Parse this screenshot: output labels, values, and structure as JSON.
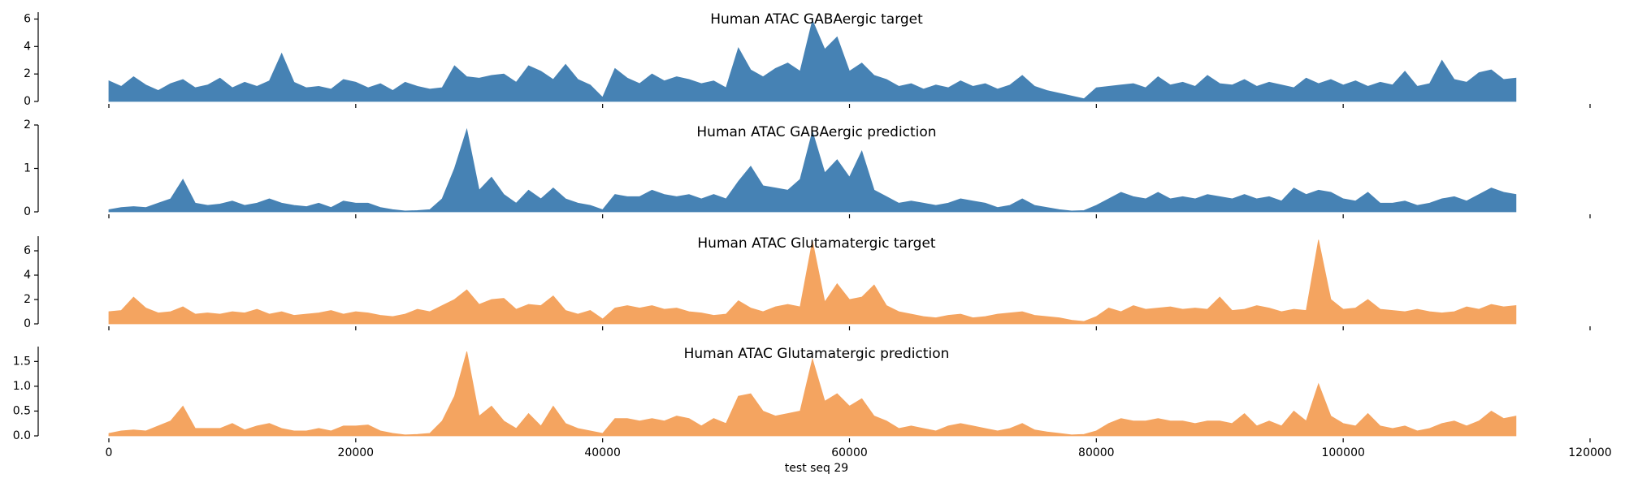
{
  "chart_data": [
    {
      "type": "area",
      "title": "Human ATAC GABAergic target",
      "color": "#4682b4",
      "x": [
        0,
        1000,
        2000,
        3000,
        4000,
        5000,
        6000,
        7000,
        8000,
        9000,
        10000,
        11000,
        12000,
        13000,
        14000,
        15000,
        16000,
        17000,
        18000,
        19000,
        20000,
        21000,
        22000,
        23000,
        24000,
        25000,
        26000,
        27000,
        28000,
        29000,
        30000,
        31000,
        32000,
        33000,
        34000,
        35000,
        36000,
        37000,
        38000,
        39000,
        40000,
        41000,
        42000,
        43000,
        44000,
        45000,
        46000,
        47000,
        48000,
        49000,
        50000,
        51000,
        52000,
        53000,
        54000,
        55000,
        56000,
        57000,
        58000,
        59000,
        60000,
        61000,
        62000,
        63000,
        64000,
        65000,
        66000,
        67000,
        68000,
        69000,
        70000,
        71000,
        72000,
        73000,
        74000,
        75000,
        76000,
        77000,
        78000,
        79000,
        80000,
        81000,
        82000,
        83000,
        84000,
        85000,
        86000,
        87000,
        88000,
        89000,
        90000,
        91000,
        92000,
        93000,
        94000,
        95000,
        96000,
        97000,
        98000,
        99000,
        100000,
        101000,
        102000,
        103000,
        104000,
        105000,
        106000,
        107000,
        108000,
        109000,
        110000,
        111000,
        112000,
        113000,
        114000
      ],
      "values": [
        1.5,
        1.1,
        1.8,
        1.2,
        0.8,
        1.3,
        1.6,
        1.0,
        1.2,
        1.7,
        1.0,
        1.4,
        1.1,
        1.5,
        3.5,
        1.4,
        1.0,
        1.1,
        0.9,
        1.6,
        1.4,
        1.0,
        1.3,
        0.8,
        1.4,
        1.1,
        0.9,
        1.0,
        2.6,
        1.8,
        1.7,
        1.9,
        2.0,
        1.4,
        2.6,
        2.2,
        1.6,
        2.7,
        1.6,
        1.2,
        0.3,
        2.4,
        1.7,
        1.3,
        2.0,
        1.5,
        1.8,
        1.6,
        1.3,
        1.5,
        1.0,
        3.9,
        2.3,
        1.8,
        2.4,
        2.8,
        2.2,
        5.9,
        3.8,
        4.7,
        2.2,
        2.8,
        1.9,
        1.6,
        1.1,
        1.3,
        0.9,
        1.2,
        1.0,
        1.5,
        1.1,
        1.3,
        0.9,
        1.2,
        1.9,
        1.1,
        0.8,
        0.6,
        0.4,
        0.2,
        1.0,
        1.1,
        1.2,
        1.3,
        1.0,
        1.8,
        1.2,
        1.4,
        1.1,
        1.9,
        1.3,
        1.2,
        1.6,
        1.1,
        1.4,
        1.2,
        1.0,
        1.7,
        1.3,
        1.6,
        1.2,
        1.5,
        1.1,
        1.4,
        1.2,
        2.2,
        1.1,
        1.3,
        3.0,
        1.6,
        1.4,
        2.1,
        2.3,
        1.6,
        1.7
      ],
      "xlim": [
        0,
        120000
      ],
      "xticks": [
        0,
        20000,
        40000,
        60000,
        80000,
        100000,
        120000
      ],
      "ylim": [
        0,
        6.5
      ],
      "yticks": [
        0,
        2,
        4,
        6
      ]
    },
    {
      "type": "area",
      "title": "Human ATAC GABAergic prediction",
      "color": "#4682b4",
      "x": [
        0,
        1000,
        2000,
        3000,
        4000,
        5000,
        6000,
        7000,
        8000,
        9000,
        10000,
        11000,
        12000,
        13000,
        14000,
        15000,
        16000,
        17000,
        18000,
        19000,
        20000,
        21000,
        22000,
        23000,
        24000,
        25000,
        26000,
        27000,
        28000,
        29000,
        30000,
        31000,
        32000,
        33000,
        34000,
        35000,
        36000,
        37000,
        38000,
        39000,
        40000,
        41000,
        42000,
        43000,
        44000,
        45000,
        46000,
        47000,
        48000,
        49000,
        50000,
        51000,
        52000,
        53000,
        54000,
        55000,
        56000,
        57000,
        58000,
        59000,
        60000,
        61000,
        62000,
        63000,
        64000,
        65000,
        66000,
        67000,
        68000,
        69000,
        70000,
        71000,
        72000,
        73000,
        74000,
        75000,
        76000,
        77000,
        78000,
        79000,
        80000,
        81000,
        82000,
        83000,
        84000,
        85000,
        86000,
        87000,
        88000,
        89000,
        90000,
        91000,
        92000,
        93000,
        94000,
        95000,
        96000,
        97000,
        98000,
        99000,
        100000,
        101000,
        102000,
        103000,
        104000,
        105000,
        106000,
        107000,
        108000,
        109000,
        110000,
        111000,
        112000,
        113000,
        114000
      ],
      "values": [
        0.05,
        0.1,
        0.12,
        0.1,
        0.2,
        0.3,
        0.75,
        0.2,
        0.15,
        0.18,
        0.25,
        0.15,
        0.2,
        0.3,
        0.2,
        0.15,
        0.12,
        0.2,
        0.1,
        0.25,
        0.2,
        0.2,
        0.1,
        0.05,
        0.02,
        0.03,
        0.05,
        0.3,
        1.0,
        1.9,
        0.5,
        0.8,
        0.4,
        0.2,
        0.5,
        0.3,
        0.55,
        0.3,
        0.2,
        0.15,
        0.05,
        0.4,
        0.35,
        0.35,
        0.5,
        0.4,
        0.35,
        0.4,
        0.3,
        0.4,
        0.3,
        0.7,
        1.05,
        0.6,
        0.55,
        0.5,
        0.75,
        1.85,
        0.9,
        1.2,
        0.8,
        1.4,
        0.5,
        0.35,
        0.2,
        0.25,
        0.2,
        0.15,
        0.2,
        0.3,
        0.25,
        0.2,
        0.1,
        0.15,
        0.3,
        0.15,
        0.1,
        0.05,
        0.02,
        0.03,
        0.15,
        0.3,
        0.45,
        0.35,
        0.3,
        0.45,
        0.3,
        0.35,
        0.3,
        0.4,
        0.35,
        0.3,
        0.4,
        0.3,
        0.35,
        0.25,
        0.55,
        0.4,
        0.5,
        0.45,
        0.3,
        0.25,
        0.45,
        0.2,
        0.2,
        0.25,
        0.15,
        0.2,
        0.3,
        0.35,
        0.25,
        0.4,
        0.55,
        0.45,
        0.4
      ],
      "xlim": [
        0,
        120000
      ],
      "xticks": [
        0,
        20000,
        40000,
        60000,
        80000,
        100000,
        120000
      ],
      "ylim": [
        0,
        2
      ],
      "yticks": [
        0,
        1,
        2
      ]
    },
    {
      "type": "area",
      "title": "Human ATAC Glutamatergic target",
      "color": "#f4a460",
      "x": [
        0,
        1000,
        2000,
        3000,
        4000,
        5000,
        6000,
        7000,
        8000,
        9000,
        10000,
        11000,
        12000,
        13000,
        14000,
        15000,
        16000,
        17000,
        18000,
        19000,
        20000,
        21000,
        22000,
        23000,
        24000,
        25000,
        26000,
        27000,
        28000,
        29000,
        30000,
        31000,
        32000,
        33000,
        34000,
        35000,
        36000,
        37000,
        38000,
        39000,
        40000,
        41000,
        42000,
        43000,
        44000,
        45000,
        46000,
        47000,
        48000,
        49000,
        50000,
        51000,
        52000,
        53000,
        54000,
        55000,
        56000,
        57000,
        58000,
        59000,
        60000,
        61000,
        62000,
        63000,
        64000,
        65000,
        66000,
        67000,
        68000,
        69000,
        70000,
        71000,
        72000,
        73000,
        74000,
        75000,
        76000,
        77000,
        78000,
        79000,
        80000,
        81000,
        82000,
        83000,
        84000,
        85000,
        86000,
        87000,
        88000,
        89000,
        90000,
        91000,
        92000,
        93000,
        94000,
        95000,
        96000,
        97000,
        98000,
        99000,
        100000,
        101000,
        102000,
        103000,
        104000,
        105000,
        106000,
        107000,
        108000,
        109000,
        110000,
        111000,
        112000,
        113000,
        114000
      ],
      "values": [
        1.0,
        1.1,
        2.2,
        1.3,
        0.9,
        1.0,
        1.4,
        0.8,
        0.9,
        0.8,
        1.0,
        0.9,
        1.2,
        0.8,
        1.0,
        0.7,
        0.8,
        0.9,
        1.1,
        0.8,
        1.0,
        0.9,
        0.7,
        0.6,
        0.8,
        1.2,
        1.0,
        1.5,
        2.0,
        2.8,
        1.6,
        2.0,
        2.1,
        1.2,
        1.6,
        1.5,
        2.3,
        1.1,
        0.8,
        1.1,
        0.4,
        1.3,
        1.5,
        1.3,
        1.5,
        1.2,
        1.3,
        1.0,
        0.9,
        0.7,
        0.8,
        1.9,
        1.3,
        1.0,
        1.4,
        1.6,
        1.4,
        6.8,
        1.8,
        3.3,
        2.0,
        2.2,
        3.2,
        1.5,
        1.0,
        0.8,
        0.6,
        0.5,
        0.7,
        0.8,
        0.5,
        0.6,
        0.8,
        0.9,
        1.0,
        0.7,
        0.6,
        0.5,
        0.3,
        0.2,
        0.6,
        1.3,
        1.0,
        1.5,
        1.2,
        1.3,
        1.4,
        1.2,
        1.3,
        1.2,
        2.2,
        1.1,
        1.2,
        1.5,
        1.3,
        1.0,
        1.2,
        1.1,
        6.9,
        2.0,
        1.2,
        1.3,
        2.0,
        1.2,
        1.1,
        1.0,
        1.2,
        1.0,
        0.9,
        1.0,
        1.4,
        1.2,
        1.6,
        1.4,
        1.5
      ],
      "xlim": [
        0,
        120000
      ],
      "xticks": [
        0,
        20000,
        40000,
        60000,
        80000,
        100000,
        120000
      ],
      "ylim": [
        0,
        7.2
      ],
      "yticks": [
        0,
        2,
        4,
        6
      ]
    },
    {
      "type": "area",
      "title": "Human ATAC Glutamatergic prediction",
      "color": "#f4a460",
      "xlabel": "test seq 29",
      "x": [
        0,
        1000,
        2000,
        3000,
        4000,
        5000,
        6000,
        7000,
        8000,
        9000,
        10000,
        11000,
        12000,
        13000,
        14000,
        15000,
        16000,
        17000,
        18000,
        19000,
        20000,
        21000,
        22000,
        23000,
        24000,
        25000,
        26000,
        27000,
        28000,
        29000,
        30000,
        31000,
        32000,
        33000,
        34000,
        35000,
        36000,
        37000,
        38000,
        39000,
        40000,
        41000,
        42000,
        43000,
        44000,
        45000,
        46000,
        47000,
        48000,
        49000,
        50000,
        51000,
        52000,
        53000,
        54000,
        55000,
        56000,
        57000,
        58000,
        59000,
        60000,
        61000,
        62000,
        63000,
        64000,
        65000,
        66000,
        67000,
        68000,
        69000,
        70000,
        71000,
        72000,
        73000,
        74000,
        75000,
        76000,
        77000,
        78000,
        79000,
        80000,
        81000,
        82000,
        83000,
        84000,
        85000,
        86000,
        87000,
        88000,
        89000,
        90000,
        91000,
        92000,
        93000,
        94000,
        95000,
        96000,
        97000,
        98000,
        99000,
        100000,
        101000,
        102000,
        103000,
        104000,
        105000,
        106000,
        107000,
        108000,
        109000,
        110000,
        111000,
        112000,
        113000,
        114000
      ],
      "values": [
        0.05,
        0.1,
        0.12,
        0.1,
        0.2,
        0.3,
        0.6,
        0.15,
        0.15,
        0.15,
        0.25,
        0.12,
        0.2,
        0.25,
        0.15,
        0.1,
        0.1,
        0.15,
        0.1,
        0.2,
        0.2,
        0.22,
        0.1,
        0.05,
        0.02,
        0.03,
        0.05,
        0.3,
        0.8,
        1.7,
        0.4,
        0.6,
        0.3,
        0.15,
        0.45,
        0.2,
        0.6,
        0.25,
        0.15,
        0.1,
        0.05,
        0.35,
        0.35,
        0.3,
        0.35,
        0.3,
        0.4,
        0.35,
        0.2,
        0.35,
        0.25,
        0.8,
        0.85,
        0.5,
        0.4,
        0.45,
        0.5,
        1.55,
        0.7,
        0.85,
        0.6,
        0.75,
        0.4,
        0.3,
        0.15,
        0.2,
        0.15,
        0.1,
        0.2,
        0.25,
        0.2,
        0.15,
        0.1,
        0.15,
        0.25,
        0.12,
        0.08,
        0.05,
        0.02,
        0.03,
        0.1,
        0.25,
        0.35,
        0.3,
        0.3,
        0.35,
        0.3,
        0.3,
        0.25,
        0.3,
        0.3,
        0.25,
        0.45,
        0.2,
        0.3,
        0.2,
        0.5,
        0.3,
        1.05,
        0.4,
        0.25,
        0.2,
        0.45,
        0.2,
        0.15,
        0.2,
        0.1,
        0.15,
        0.25,
        0.3,
        0.2,
        0.3,
        0.5,
        0.35,
        0.4
      ],
      "xlim": [
        0,
        120000
      ],
      "xticks": [
        0,
        20000,
        40000,
        60000,
        80000,
        100000,
        120000
      ],
      "ylim": [
        0,
        1.8
      ],
      "yticks": [
        {
          "value": 0,
          "label": "0.0"
        },
        0.5,
        {
          "value": 1,
          "label": "1.0"
        },
        1.5
      ]
    }
  ]
}
